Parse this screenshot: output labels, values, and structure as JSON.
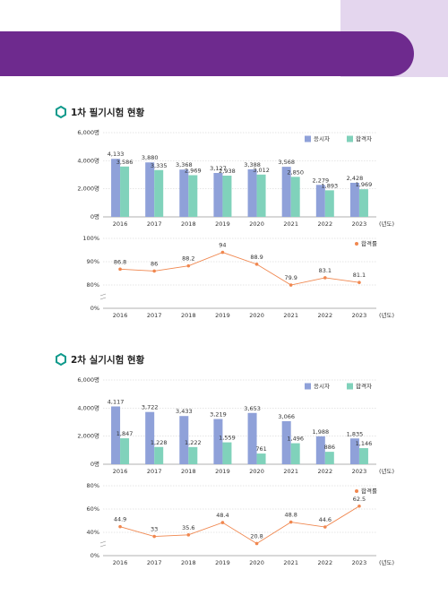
{
  "sections": [
    {
      "title": "1차 필기시험 현황"
    },
    {
      "title": "2차 실기시험 현황"
    }
  ],
  "chart_data": [
    {
      "type": "bar",
      "x_label": "(년도)",
      "categories": [
        "2016",
        "2017",
        "2018",
        "2019",
        "2020",
        "2021",
        "2022",
        "2023"
      ],
      "series": [
        {
          "name": "응시자",
          "color": "#8fa1d9",
          "values": [
            4133,
            3880,
            3368,
            3127,
            3388,
            3568,
            2279,
            2428
          ],
          "value_labels": [
            "4,133",
            "3,880",
            "3,368",
            "3,127",
            "3,388",
            "3,568",
            "2,279",
            "2,428"
          ]
        },
        {
          "name": "합격자",
          "color": "#80d2bb",
          "values": [
            3586,
            3335,
            2969,
            2938,
            3012,
            2850,
            1893,
            1969
          ],
          "value_labels": [
            "3,586",
            "3,335",
            "2,969",
            "2,938",
            "3,012",
            "2,850",
            "1,893",
            "1,969"
          ]
        }
      ],
      "ylim": [
        0,
        6000
      ],
      "yticks": [
        {
          "value": 0,
          "label": "0명"
        },
        {
          "value": 2000,
          "label": "2,000명"
        },
        {
          "value": 4000,
          "label": "4,000명"
        },
        {
          "value": 6000,
          "label": "6,000명"
        }
      ],
      "grid": true,
      "legend": "top-right"
    },
    {
      "type": "line",
      "x_label": "(년도)",
      "categories": [
        "2016",
        "2017",
        "2018",
        "2019",
        "2020",
        "2021",
        "2022",
        "2023"
      ],
      "series": [
        {
          "name": "합격률",
          "color": "#f0874f",
          "values": [
            86.8,
            86,
            88.2,
            94,
            88.9,
            79.9,
            83.1,
            81.1
          ]
        }
      ],
      "ylim": [
        0,
        100
      ],
      "yticks": [
        {
          "value": 0,
          "label": "0%"
        },
        {
          "value": 80,
          "label": "80%"
        },
        {
          "value": 90,
          "label": "90%"
        },
        {
          "value": 100,
          "label": "100%"
        }
      ],
      "axis_break": true,
      "grid": true,
      "legend": "top-right"
    },
    {
      "type": "bar",
      "x_label": "(년도)",
      "categories": [
        "2016",
        "2017",
        "2018",
        "2019",
        "2020",
        "2021",
        "2022",
        "2023"
      ],
      "series": [
        {
          "name": "응시자",
          "color": "#8fa1d9",
          "values": [
            4117,
            3722,
            3433,
            3219,
            3653,
            3066,
            1988,
            1835
          ],
          "value_labels": [
            "4,117",
            "3,722",
            "3,433",
            "3,219",
            "3,653",
            "3,066",
            "1,988",
            "1,835"
          ]
        },
        {
          "name": "합격자",
          "color": "#80d2bb",
          "values": [
            1847,
            1228,
            1222,
            1559,
            761,
            1496,
            886,
            1146
          ],
          "value_labels": [
            "1,847",
            "1,228",
            "1,222",
            "1,559",
            "761",
            "1,496",
            "886",
            "1,146"
          ]
        }
      ],
      "ylim": [
        0,
        6000
      ],
      "yticks": [
        {
          "value": 0,
          "label": "0명"
        },
        {
          "value": 2000,
          "label": "2,000명"
        },
        {
          "value": 4000,
          "label": "4,000명"
        },
        {
          "value": 6000,
          "label": "6,000명"
        }
      ],
      "grid": true,
      "legend": "top-right"
    },
    {
      "type": "line",
      "x_label": "(년도)",
      "categories": [
        "2016",
        "2017",
        "2018",
        "2019",
        "2020",
        "2021",
        "2022",
        "2023"
      ],
      "series": [
        {
          "name": "합격률",
          "color": "#f0874f",
          "values": [
            44.9,
            33,
            35.6,
            48.4,
            20.8,
            48.8,
            44.6,
            62.5
          ]
        }
      ],
      "ylim": [
        0,
        80
      ],
      "yticks": [
        {
          "value": 0,
          "label": "0%"
        },
        {
          "value": 40,
          "label": "40%"
        },
        {
          "value": 60,
          "label": "60%"
        },
        {
          "value": 80,
          "label": "80%"
        }
      ],
      "axis_break": true,
      "grid": true,
      "legend": "top-right"
    }
  ]
}
